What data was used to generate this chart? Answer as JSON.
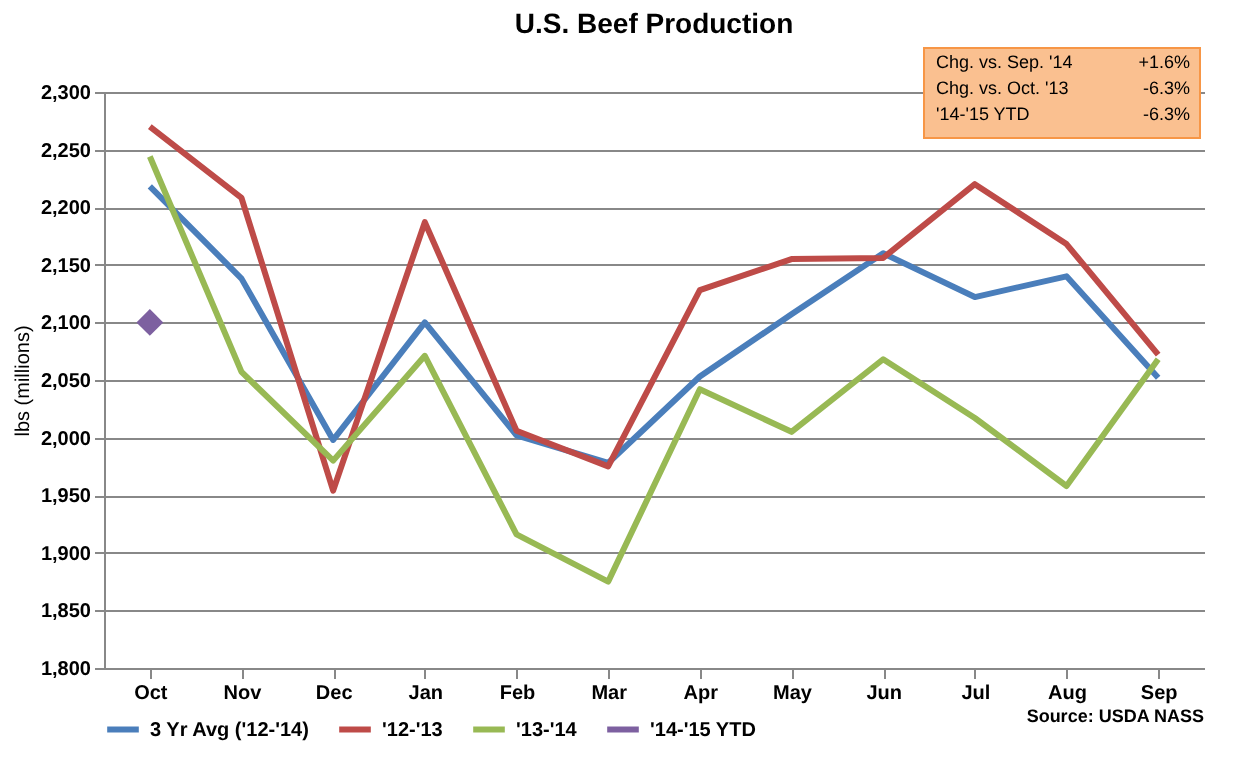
{
  "chart_data": {
    "type": "line",
    "title": "U.S. Beef Production",
    "ylabel": "lbs (millions)",
    "categories": [
      "Oct",
      "Nov",
      "Dec",
      "Jan",
      "Feb",
      "Mar",
      "Apr",
      "May",
      "Jun",
      "Jul",
      "Aug",
      "Sep"
    ],
    "series": [
      {
        "name": "3 Yr Avg ('12-'14)",
        "color": "#4a7ebb",
        "values": [
          2218,
          2138,
          1998,
          2100,
          2002,
          1978,
          2053,
          2107,
          2160,
          2122,
          2140,
          2052
        ]
      },
      {
        "name": "'12-'13",
        "color": "#be4b48",
        "values": [
          2270,
          2208,
          1954,
          2187,
          2006,
          1975,
          2128,
          2155,
          2156,
          2220,
          2168,
          2072
        ]
      },
      {
        "name": "'13-'14",
        "color": "#98b954",
        "values": [
          2244,
          2057,
          1980,
          2071,
          1916,
          1875,
          2042,
          2005,
          2068,
          2017,
          1958,
          2068
        ]
      },
      {
        "name": "'14-'15 YTD",
        "color": "#7d60a0",
        "type": "scatter",
        "marker": "diamond",
        "values": [
          2100,
          null,
          null,
          null,
          null,
          null,
          null,
          null,
          null,
          null,
          null,
          null
        ]
      }
    ],
    "ylim": [
      1800,
      2300
    ],
    "yticks": [
      {
        "value": 1800,
        "label": "1,800"
      },
      {
        "value": 1850,
        "label": "1,850"
      },
      {
        "value": 1900,
        "label": "1,900"
      },
      {
        "value": 1950,
        "label": "1,950"
      },
      {
        "value": 2000,
        "label": "2,000"
      },
      {
        "value": 2050,
        "label": "2,050"
      },
      {
        "value": 2100,
        "label": "2,100"
      },
      {
        "value": 2150,
        "label": "2,150"
      },
      {
        "value": 2200,
        "label": "2,200"
      },
      {
        "value": 2250,
        "label": "2,250"
      },
      {
        "value": 2300,
        "label": "2,300"
      }
    ],
    "grid": "y",
    "legend": "bottom",
    "marker": "none",
    "line_style": "solid",
    "annotations": [
      "Chg. vs. Sep. '14",
      "+1.6%",
      "Chg. vs. Oct. '13",
      "-6.3%",
      "'14-'15 YTD",
      "-6.3%",
      "Source: USDA NASS"
    ]
  }
}
